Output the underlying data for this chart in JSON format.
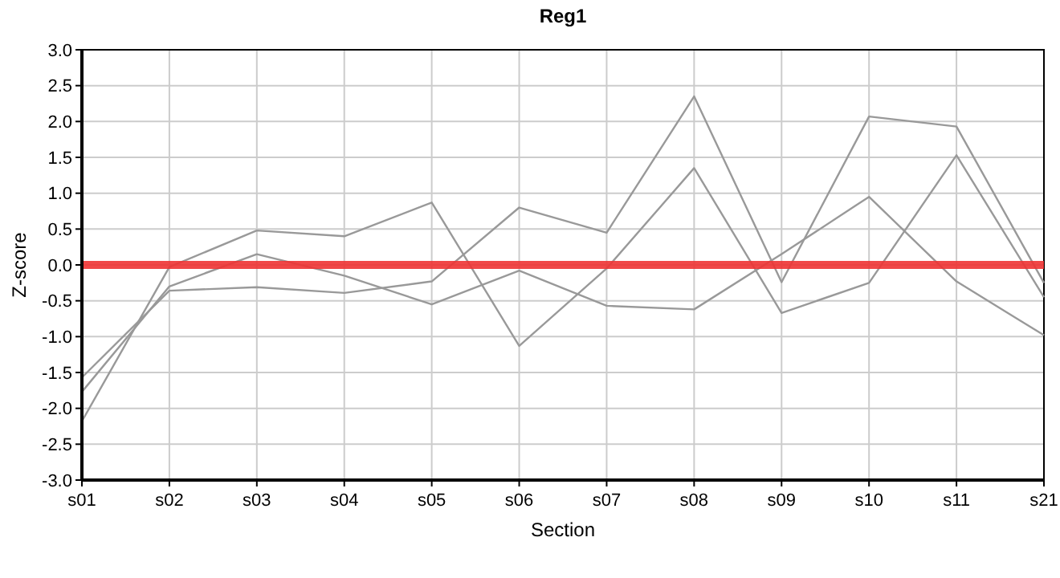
{
  "chart_data": {
    "type": "line",
    "title": "Reg1",
    "xlabel": "Section",
    "ylabel": "Z-score",
    "categories": [
      "s01",
      "s02",
      "s03",
      "s04",
      "s05",
      "s06",
      "s07",
      "s08",
      "s09",
      "s10",
      "s11",
      "s21"
    ],
    "series": [
      {
        "color": "#999999",
        "values": [
          -2.18,
          -0.03,
          0.48,
          0.4,
          0.87,
          -1.13,
          -0.05,
          1.35,
          -0.67,
          -0.25,
          1.53,
          -0.45
        ]
      },
      {
        "color": "#999999",
        "values": [
          -1.77,
          -0.3,
          0.15,
          -0.15,
          -0.55,
          -0.08,
          -0.57,
          -0.62,
          0.15,
          0.95,
          -0.23,
          -0.98
        ]
      },
      {
        "color": "#999999",
        "values": [
          -1.57,
          -0.36,
          -0.31,
          -0.39,
          -0.23,
          0.8,
          0.45,
          2.35,
          -0.24,
          2.07,
          1.93,
          -0.25
        ]
      }
    ],
    "ylim": [
      -3,
      3
    ],
    "yticks": [
      {
        "value": -3,
        "label": "-3.0"
      },
      {
        "value": -2.5,
        "label": "-2.5"
      },
      {
        "value": -2,
        "label": "-2.0"
      },
      {
        "value": -1.5,
        "label": "-1.5"
      },
      {
        "value": -1,
        "label": "-1.0"
      },
      {
        "value": -0.5,
        "label": "-0.5"
      },
      {
        "value": 0,
        "label": "0.0"
      },
      {
        "value": 0.5,
        "label": "0.5"
      },
      {
        "value": 1,
        "label": "1.0"
      },
      {
        "value": 1.5,
        "label": "1.5"
      },
      {
        "value": 2,
        "label": "2.0"
      },
      {
        "value": 2.5,
        "label": "2.5"
      },
      {
        "value": 3,
        "label": "3.0"
      }
    ],
    "ref_lines": [
      {
        "axis": "y",
        "value": 0,
        "color": "#ee3333"
      }
    ],
    "grid": true,
    "marker": "none",
    "line_style": "solid"
  }
}
